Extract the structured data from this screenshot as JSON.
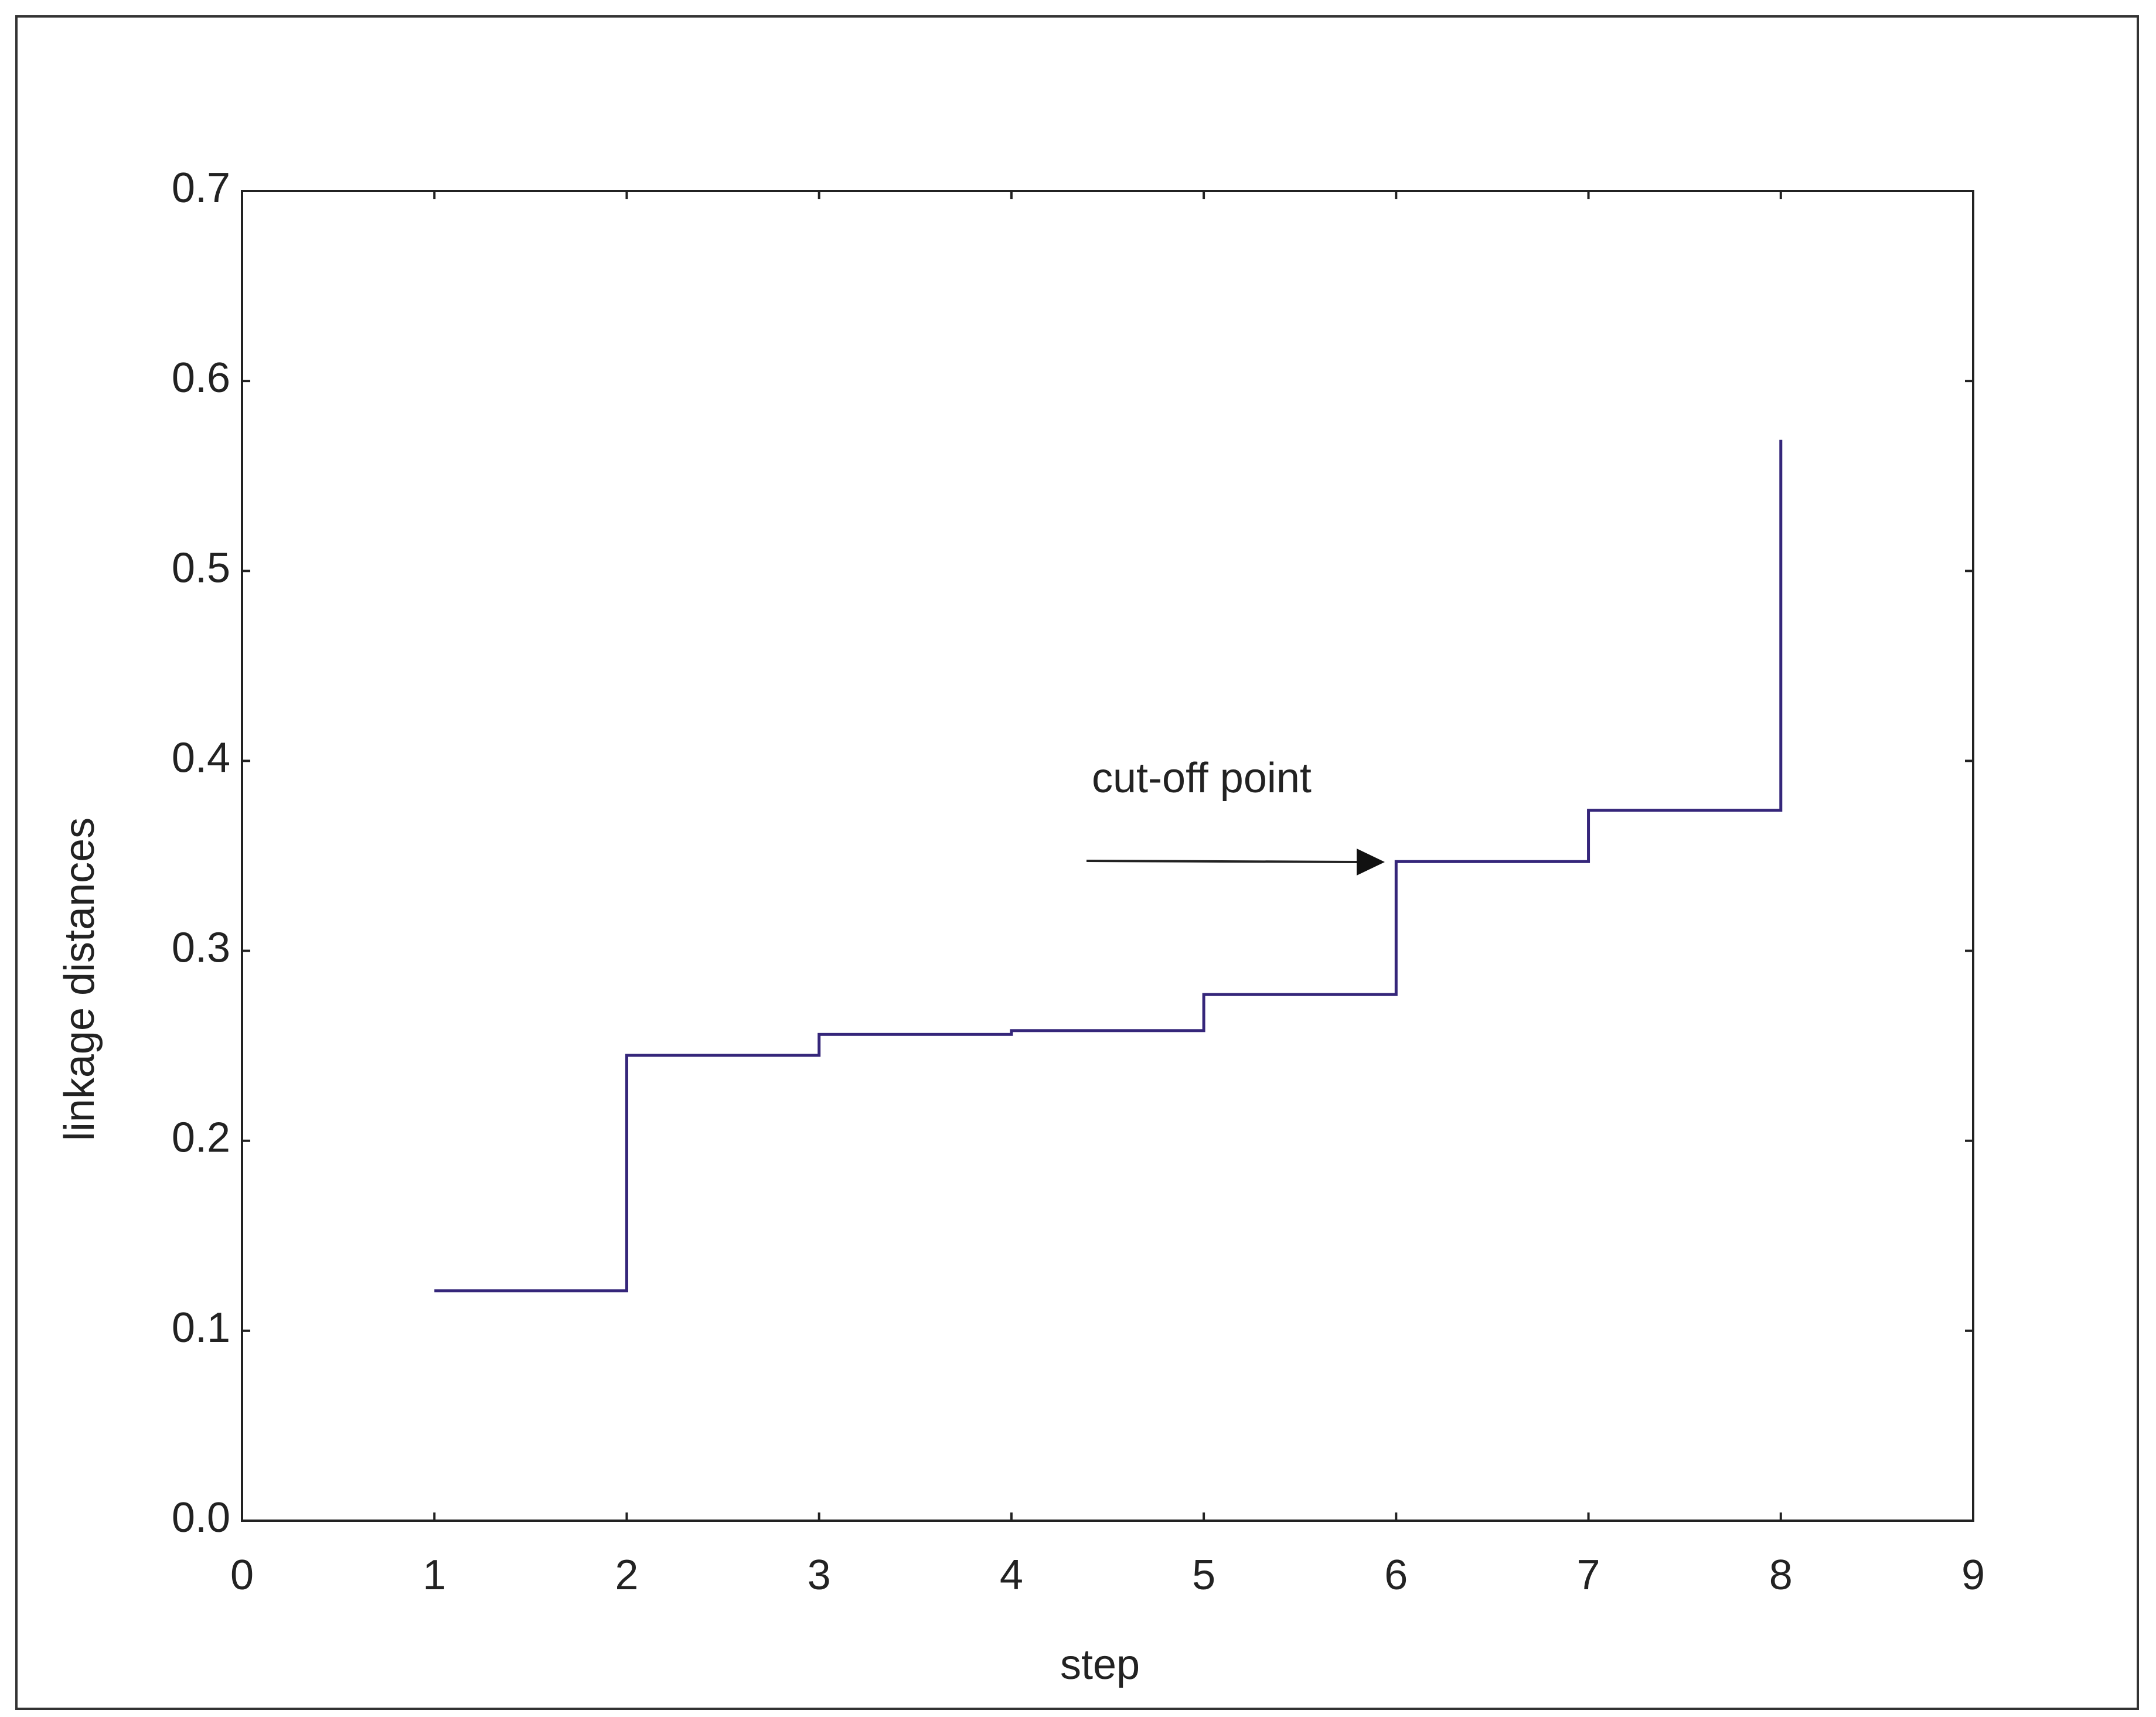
{
  "chart_data": {
    "type": "step",
    "x": [
      1,
      2,
      3,
      4,
      5,
      6,
      7,
      8
    ],
    "series": [
      {
        "values": [
          0.121,
          0.245,
          0.256,
          0.258,
          0.277,
          0.347,
          0.374,
          0.569
        ],
        "color": "#35267a"
      }
    ],
    "xlim": [
      0,
      9
    ],
    "xticks": [
      0,
      1,
      2,
      3,
      4,
      5,
      6,
      7,
      8,
      9
    ],
    "ylim": [
      0,
      0.7
    ],
    "yticks": [
      {
        "value": 0,
        "label": "0.0"
      },
      0.1,
      0.2,
      0.3,
      0.4,
      0.5,
      0.6,
      0.7
    ],
    "xlabel": "step",
    "ylabel": "linkage distances",
    "annotation": "cut-off point"
  }
}
